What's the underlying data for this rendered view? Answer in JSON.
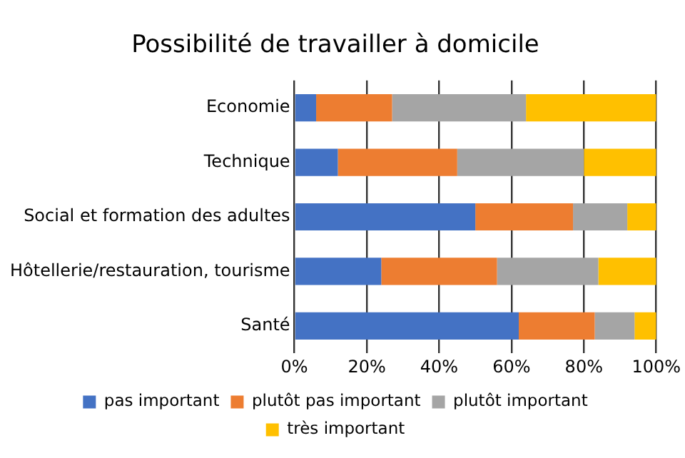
{
  "chart_data": {
    "type": "bar",
    "orientation": "horizontal",
    "stacked": true,
    "title": "Possibilité de travailler à domicile",
    "categories": [
      "Economie",
      "Technique",
      "Social et formation des adultes",
      "Hôtellerie/restauration, tourisme",
      "Santé"
    ],
    "series": [
      {
        "name": "pas important",
        "color": "#4472c4",
        "values": [
          6,
          12,
          50,
          24,
          62
        ]
      },
      {
        "name": "plutôt pas important",
        "color": "#ed7d31",
        "values": [
          21,
          33,
          27,
          32,
          21
        ]
      },
      {
        "name": "plutôt important",
        "color": "#a5a5a5",
        "values": [
          37,
          35,
          15,
          28,
          11
        ]
      },
      {
        "name": "très important",
        "color": "#ffc000",
        "values": [
          36,
          20,
          8,
          16,
          6
        ]
      }
    ],
    "xlim": [
      0,
      100
    ],
    "xticks": [
      {
        "value": 0,
        "label": "0%"
      },
      {
        "value": 20,
        "label": "20%"
      },
      {
        "value": 40,
        "label": "40%"
      },
      {
        "value": 60,
        "label": "60%"
      },
      {
        "value": 80,
        "label": "80%"
      },
      {
        "value": 100,
        "label": "100%"
      }
    ],
    "grid": "x",
    "legend": "bottom"
  }
}
